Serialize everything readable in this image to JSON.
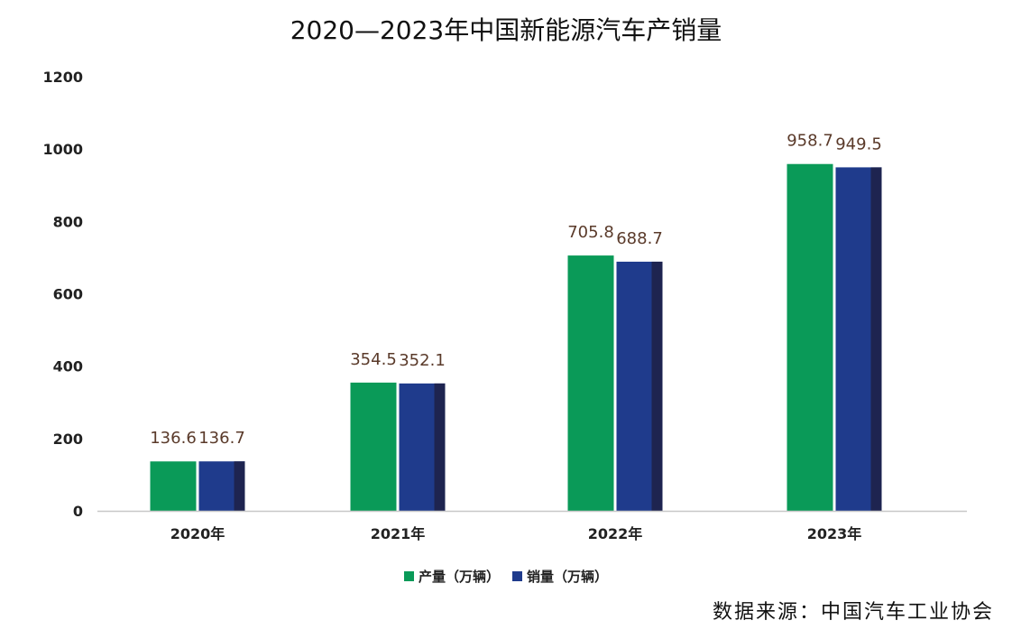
{
  "title": "2020—2023年中国新能源汽车产销量",
  "source": "数据来源：中国汽车工业协会",
  "colors": {
    "production": "#0a9a58",
    "sales": "#1f3b8c",
    "sales_shade": "#1e2450",
    "axis": "#c8c8c8",
    "label": "#5a3a2a"
  },
  "chart_data": {
    "type": "bar",
    "title": "2020—2023年中国新能源汽车产销量",
    "xlabel": "",
    "ylabel": "",
    "categories": [
      "2020年",
      "2021年",
      "2022年",
      "2023年"
    ],
    "series": [
      {
        "name": "产量（万辆）",
        "values": [
          136.6,
          354.5,
          705.8,
          958.7
        ]
      },
      {
        "name": "销量（万辆）",
        "values": [
          136.7,
          352.1,
          688.7,
          949.5
        ]
      }
    ],
    "ylim": [
      0,
      1200
    ],
    "yticks": [
      "0",
      "200",
      "400",
      "600",
      "800",
      "1000",
      "1200"
    ],
    "data_labels": [
      [
        "136.6",
        "354.5",
        "705.8",
        "958.7"
      ],
      [
        "136.7",
        "352.1",
        "688.7",
        "949.5"
      ]
    ],
    "grid": false,
    "legend": "bottom"
  }
}
